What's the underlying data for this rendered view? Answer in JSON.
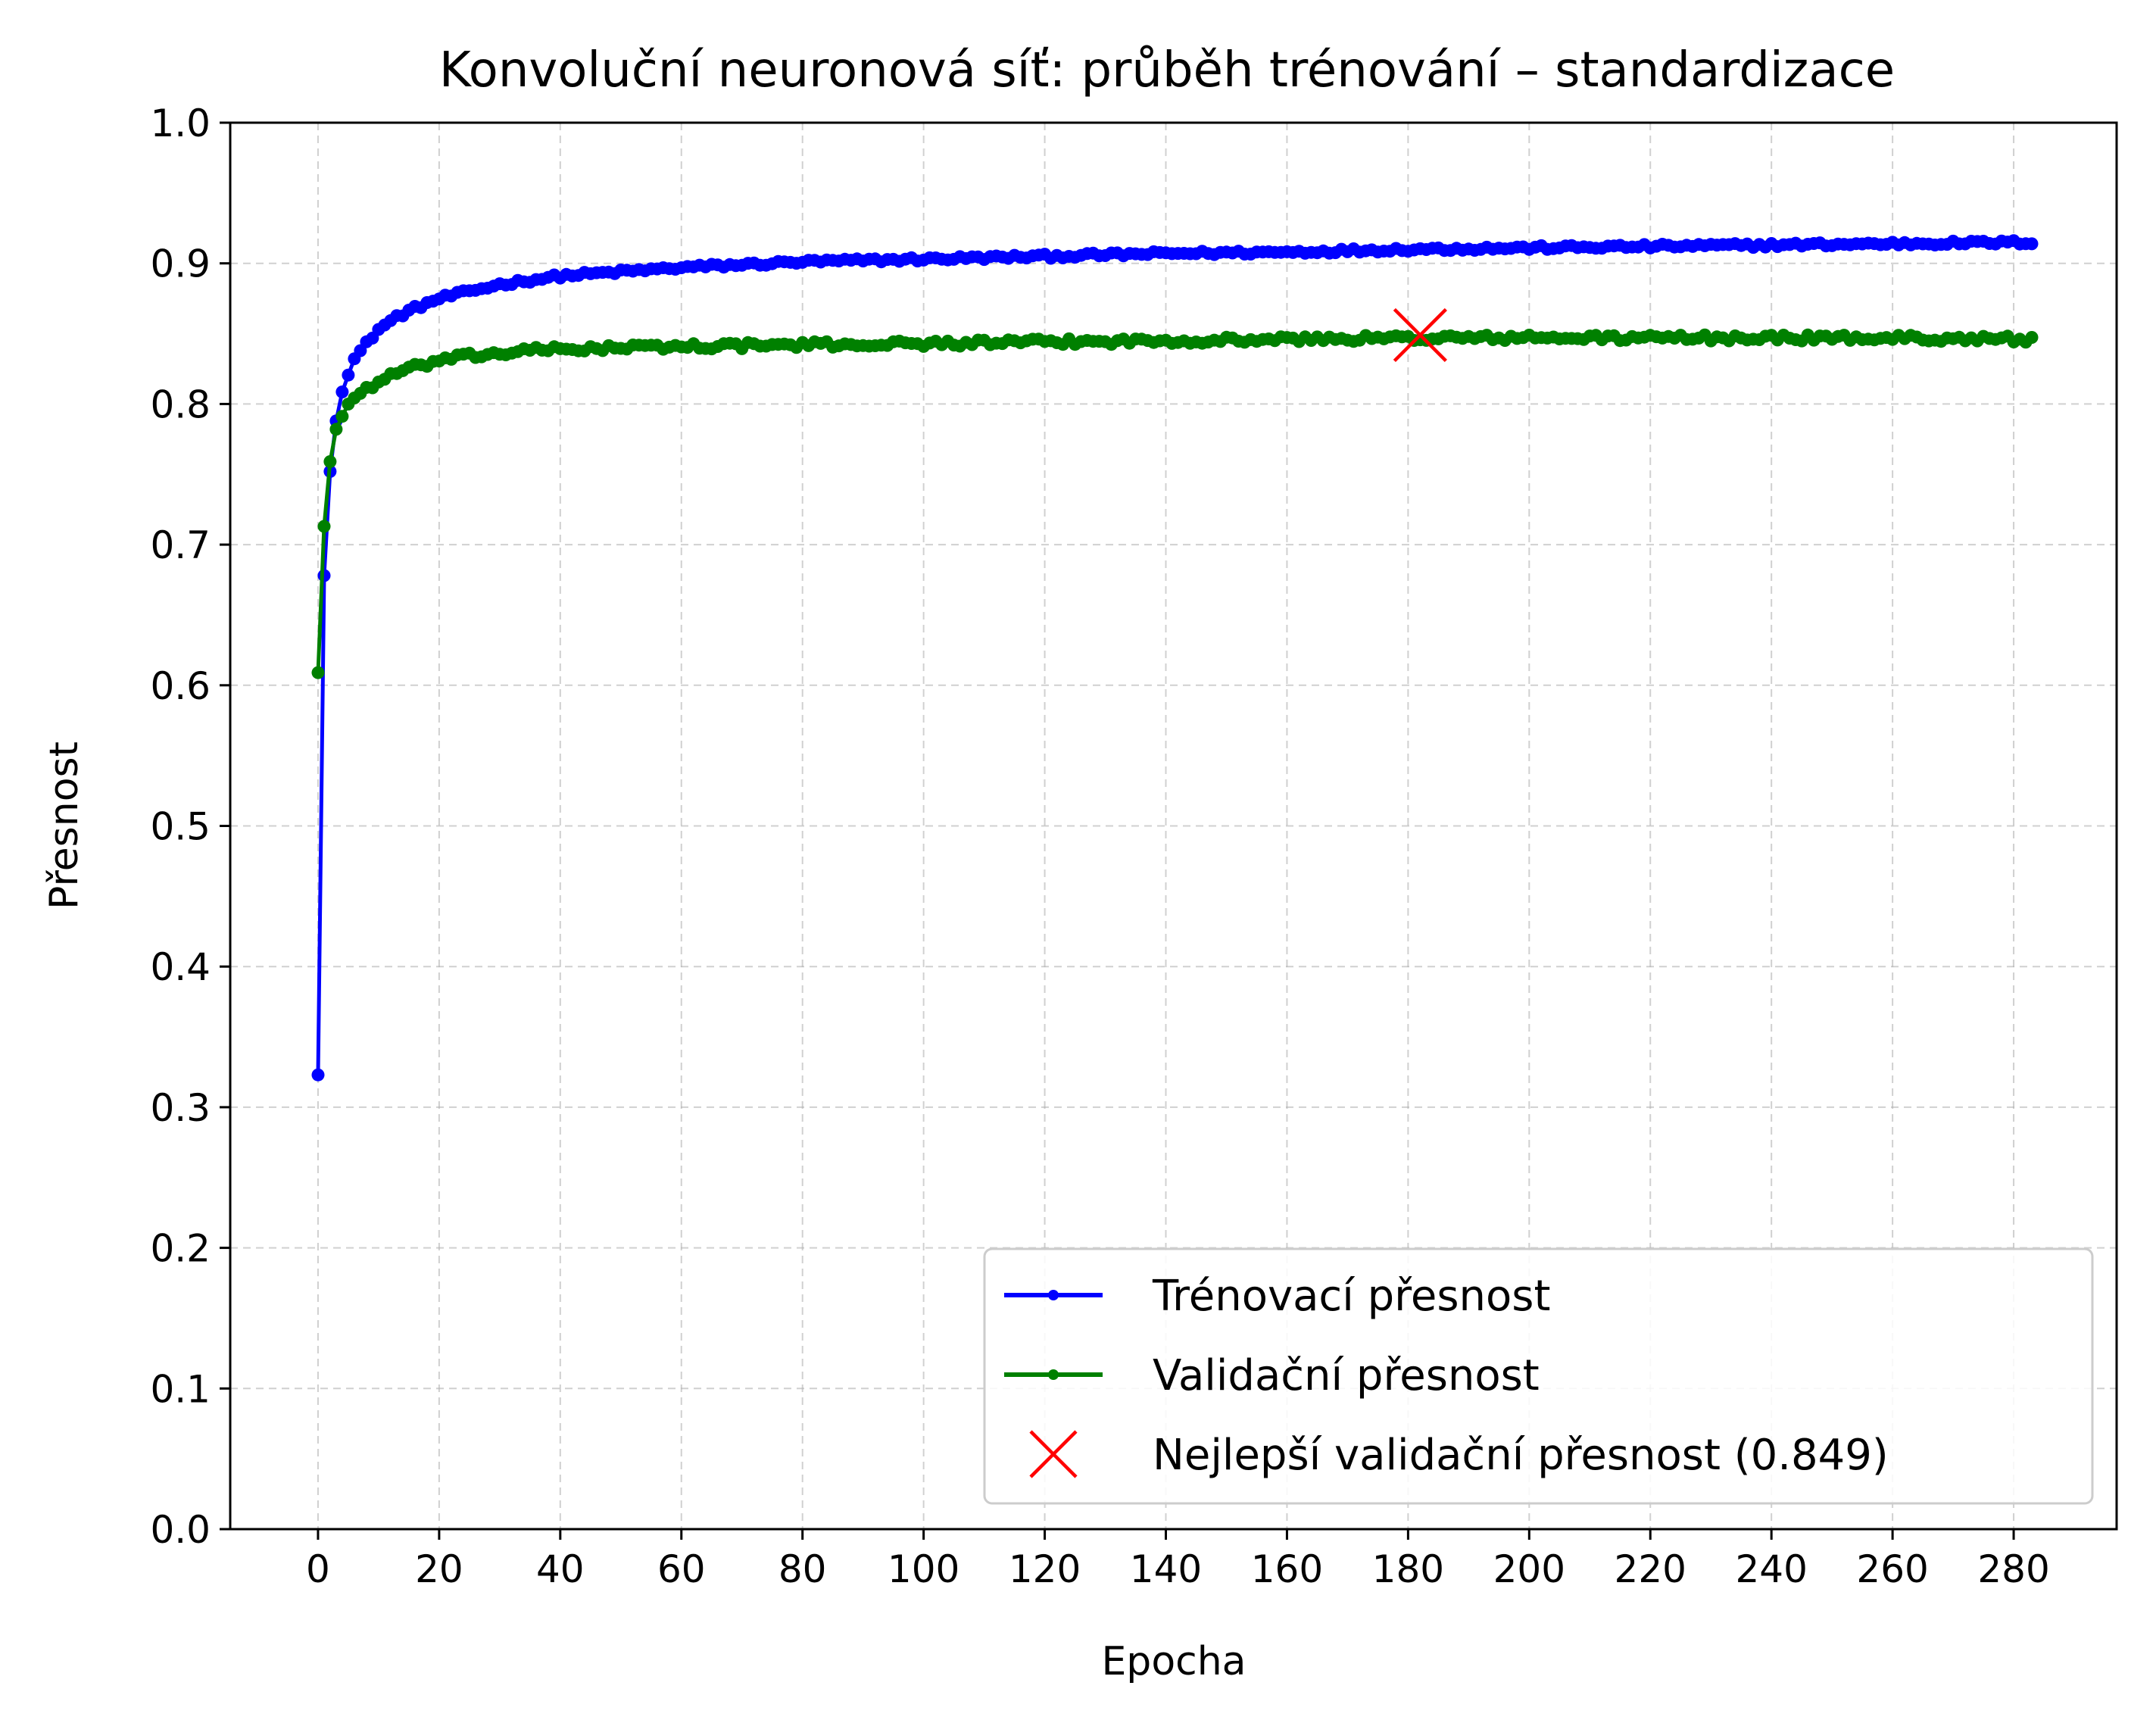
{
  "chart_data": {
    "type": "line",
    "title": "Konvoluční neuronová síť: průběh trénování – standardizace",
    "xlabel": "Epocha",
    "ylabel": "Přesnost",
    "xlim": [
      -14.5,
      297
    ],
    "ylim": [
      0.0,
      1.0
    ],
    "grid": true,
    "legend_position": "lower-right",
    "xticks": [
      0,
      20,
      40,
      60,
      80,
      100,
      120,
      140,
      160,
      180,
      200,
      220,
      240,
      260,
      280
    ],
    "xtick_labels": [
      "0",
      "20",
      "40",
      "60",
      "80",
      "100",
      "120",
      "140",
      "160",
      "180",
      "200",
      "220",
      "240",
      "260",
      "280"
    ],
    "yticks": [
      0.0,
      0.1,
      0.2,
      0.3,
      0.4,
      0.5,
      0.6,
      0.7,
      0.8,
      0.9,
      1.0
    ],
    "ytick_labels": [
      "0.0",
      "0.1",
      "0.2",
      "0.3",
      "0.4",
      "0.5",
      "0.6",
      "0.7",
      "0.8",
      "0.9",
      "1.0"
    ],
    "curve_points": {
      "train": [
        [
          0,
          0.323
        ],
        [
          1,
          0.678
        ],
        [
          2,
          0.752
        ],
        [
          3,
          0.788
        ],
        [
          4,
          0.81
        ],
        [
          5,
          0.822
        ],
        [
          6,
          0.832
        ],
        [
          8,
          0.843
        ],
        [
          10,
          0.853
        ],
        [
          13,
          0.862
        ],
        [
          16,
          0.868
        ],
        [
          20,
          0.875
        ],
        [
          25,
          0.88
        ],
        [
          30,
          0.885
        ],
        [
          35,
          0.888
        ],
        [
          40,
          0.891
        ],
        [
          50,
          0.894
        ],
        [
          60,
          0.897
        ],
        [
          70,
          0.899
        ],
        [
          80,
          0.901
        ],
        [
          100,
          0.903
        ],
        [
          120,
          0.905
        ],
        [
          140,
          0.907
        ],
        [
          160,
          0.908
        ],
        [
          180,
          0.91
        ],
        [
          200,
          0.911
        ],
        [
          220,
          0.912
        ],
        [
          240,
          0.913
        ],
        [
          260,
          0.914
        ],
        [
          283,
          0.915
        ]
      ],
      "val": [
        [
          0,
          0.609
        ],
        [
          1,
          0.713
        ],
        [
          2,
          0.759
        ],
        [
          3,
          0.782
        ],
        [
          4,
          0.792
        ],
        [
          5,
          0.8
        ],
        [
          7,
          0.808
        ],
        [
          10,
          0.816
        ],
        [
          13,
          0.822
        ],
        [
          16,
          0.826
        ],
        [
          20,
          0.831
        ],
        [
          25,
          0.834
        ],
        [
          30,
          0.836
        ],
        [
          35,
          0.838
        ],
        [
          40,
          0.839
        ],
        [
          60,
          0.841
        ],
        [
          80,
          0.842
        ],
        [
          100,
          0.843
        ],
        [
          120,
          0.844
        ],
        [
          140,
          0.845
        ],
        [
          160,
          0.846
        ],
        [
          182,
          0.847
        ],
        [
          200,
          0.847
        ],
        [
          220,
          0.847
        ],
        [
          240,
          0.847
        ],
        [
          260,
          0.847
        ],
        [
          283,
          0.846
        ]
      ]
    },
    "series": [
      {
        "name": "Trénovací přesnost",
        "color": "#0000ff",
        "marker": "dot",
        "curve_key": "train",
        "noise": 0.0015,
        "x_start": 0,
        "x_end": 283
      },
      {
        "name": "Validační přesnost",
        "color": "#008000",
        "marker": "dot",
        "curve_key": "val",
        "noise": 0.0022,
        "x_start": 0,
        "x_end": 283
      }
    ],
    "best_point": {
      "name": "Nejlepší validační přesnost (0.849)",
      "x": 182,
      "y": 0.849,
      "color": "#ff0000",
      "marker": "x"
    }
  }
}
